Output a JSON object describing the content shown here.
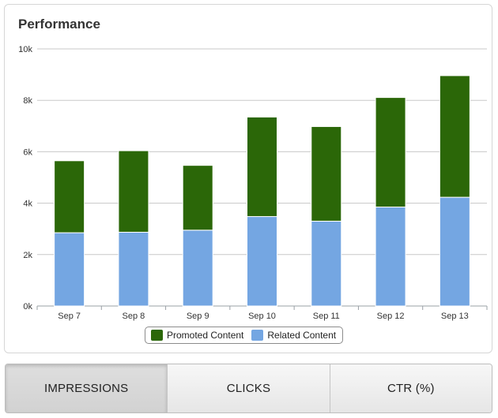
{
  "panel": {
    "title": "Performance"
  },
  "chart_data": {
    "type": "bar",
    "stacked": true,
    "title": "Performance",
    "categories": [
      "Sep 7",
      "Sep 8",
      "Sep 9",
      "Sep 10",
      "Sep 11",
      "Sep 12",
      "Sep 13"
    ],
    "series": [
      {
        "name": "Related Content",
        "color": "#74a6e2",
        "values": [
          2850,
          2870,
          2950,
          3480,
          3300,
          3850,
          4230
        ]
      },
      {
        "name": "Promoted Content",
        "color": "#2b6708",
        "values": [
          2800,
          3170,
          2520,
          3870,
          3680,
          4260,
          4730
        ]
      }
    ],
    "ylim": [
      0,
      10000
    ],
    "yticks": [
      0,
      2000,
      4000,
      6000,
      8000,
      10000
    ],
    "ytick_labels": [
      "0k",
      "2k",
      "4k",
      "6k",
      "8k",
      "10k"
    ],
    "grid": true,
    "legend_position": "bottom-center"
  },
  "legend": [
    {
      "label": "Promoted Content",
      "color": "#2b6708"
    },
    {
      "label": "Related Content",
      "color": "#74a6e2"
    }
  ],
  "tabs": [
    {
      "label": "IMPRESSIONS",
      "active": true
    },
    {
      "label": "CLICKS",
      "active": false
    },
    {
      "label": "CTR (%)",
      "active": false
    }
  ]
}
